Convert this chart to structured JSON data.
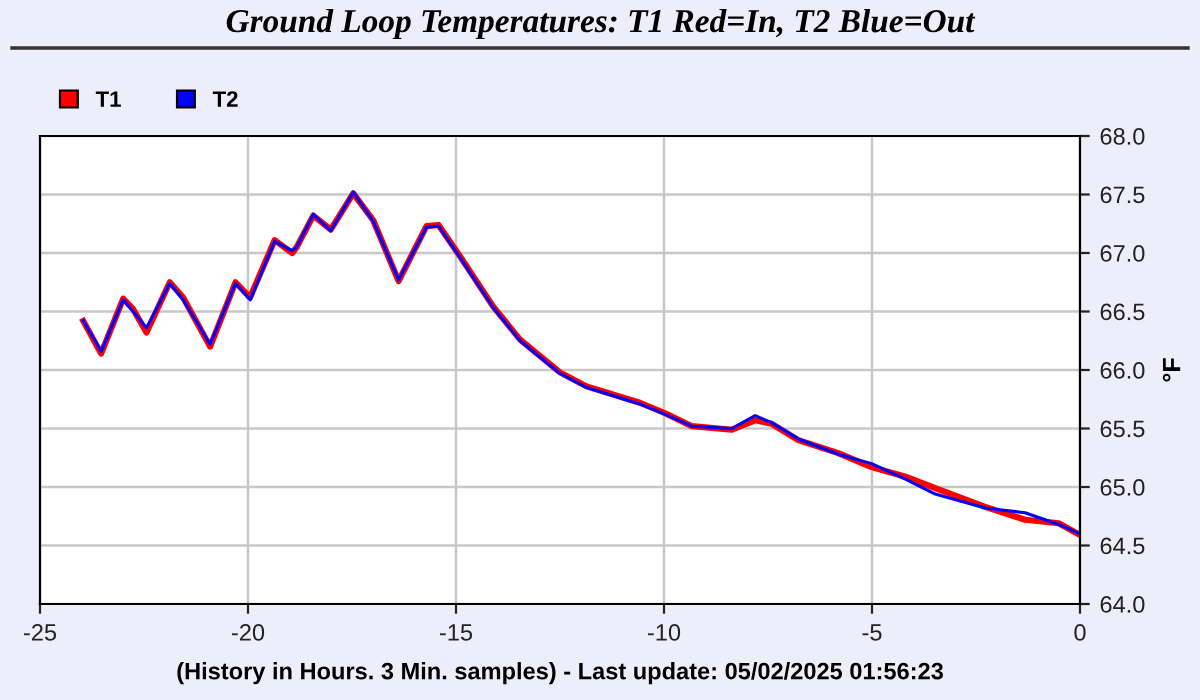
{
  "chart_data": {
    "type": "line",
    "title": "Ground Loop Temperatures: T1 Red=In, T2 Blue=Out",
    "xlabel": "(History in Hours. 3 Min. samples) - Last update: 05/02/2025 01:56:23",
    "ylabel": "°F",
    "x": [
      -23.96,
      -23.53,
      -23.0,
      -22.76,
      -22.44,
      -21.88,
      -21.56,
      -20.91,
      -20.3,
      -19.95,
      -19.36,
      -18.94,
      -18.83,
      -18.43,
      -18.01,
      -17.47,
      -16.99,
      -16.38,
      -15.71,
      -15.42,
      -14.9,
      -14.1,
      -13.46,
      -12.5,
      -11.86,
      -10.58,
      -9.97,
      -9.33,
      -8.37,
      -7.81,
      -7.41,
      -6.77,
      -5.81,
      -5.01,
      -4.21,
      -3.48,
      -2.28,
      -1.32,
      -0.51,
      0
    ],
    "series": [
      {
        "name": "T1",
        "color": "#ff0000",
        "values": [
          66.42,
          66.14,
          66.61,
          66.52,
          66.32,
          66.75,
          66.62,
          66.2,
          66.75,
          66.62,
          67.11,
          67.0,
          67.05,
          67.32,
          67.2,
          67.51,
          67.28,
          66.76,
          67.23,
          67.24,
          66.97,
          66.54,
          66.26,
          65.98,
          65.86,
          65.72,
          65.63,
          65.52,
          65.49,
          65.57,
          65.54,
          65.4,
          65.29,
          65.17,
          65.09,
          64.99,
          64.83,
          64.72,
          64.69,
          64.59
        ]
      },
      {
        "name": "T2",
        "color": "#0000ff",
        "values": [
          66.42,
          66.16,
          66.6,
          66.5,
          66.36,
          66.74,
          66.6,
          66.22,
          66.74,
          66.6,
          67.1,
          67.02,
          67.05,
          67.33,
          67.19,
          67.52,
          67.27,
          66.77,
          67.22,
          67.23,
          66.96,
          66.53,
          66.25,
          65.97,
          65.85,
          65.71,
          65.62,
          65.52,
          65.5,
          65.61,
          65.55,
          65.41,
          65.28,
          65.2,
          65.07,
          64.94,
          64.82,
          64.78,
          64.68,
          64.6
        ]
      }
    ],
    "xlim": [
      -25,
      0
    ],
    "xticks": [
      -25,
      -20,
      -15,
      -10,
      -5,
      0
    ],
    "ylim": [
      64,
      68
    ],
    "yticks": [
      {
        "value": 64,
        "label": "64.0"
      },
      {
        "value": 64.5,
        "label": "64.5"
      },
      {
        "value": 65,
        "label": "65.0"
      },
      {
        "value": 65.5,
        "label": "65.5"
      },
      {
        "value": 66,
        "label": "66.0"
      },
      {
        "value": 66.5,
        "label": "66.5"
      },
      {
        "value": 67,
        "label": "67.0"
      },
      {
        "value": 67.5,
        "label": "67.5"
      },
      {
        "value": 68,
        "label": "68.0"
      }
    ],
    "grid": true,
    "legend": "top left",
    "marker": "none",
    "line_style": "solid"
  }
}
